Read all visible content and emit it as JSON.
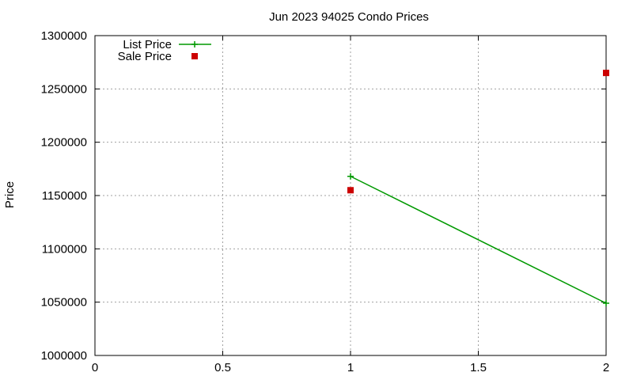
{
  "chart_data": {
    "type": "line",
    "title": "Jun 2023 94025 Condo Prices",
    "xlabel": "",
    "ylabel": "Price",
    "xlim": [
      0,
      2
    ],
    "ylim": [
      1000000,
      1300000
    ],
    "x_ticks": [
      0,
      0.5,
      1,
      1.5,
      2
    ],
    "x_tick_labels": [
      "0",
      "0.5",
      "1",
      "1.5",
      "2"
    ],
    "y_ticks": [
      1000000,
      1050000,
      1100000,
      1150000,
      1200000,
      1250000,
      1300000
    ],
    "y_tick_labels": [
      "1000000",
      "1050000",
      "1100000",
      "1150000",
      "1200000",
      "1250000",
      "1300000"
    ],
    "grid": true,
    "legend_position": "top-left",
    "series": [
      {
        "name": "List Price",
        "style": "linespoints",
        "marker": "plus",
        "color": "#009900",
        "points": [
          {
            "x": 1,
            "y": 1168000
          },
          {
            "x": 2,
            "y": 1049000
          }
        ]
      },
      {
        "name": "Sale Price",
        "style": "points",
        "marker": "square",
        "color": "#cc0000",
        "points": [
          {
            "x": 1,
            "y": 1155000
          },
          {
            "x": 2,
            "y": 1265000
          }
        ]
      }
    ]
  }
}
